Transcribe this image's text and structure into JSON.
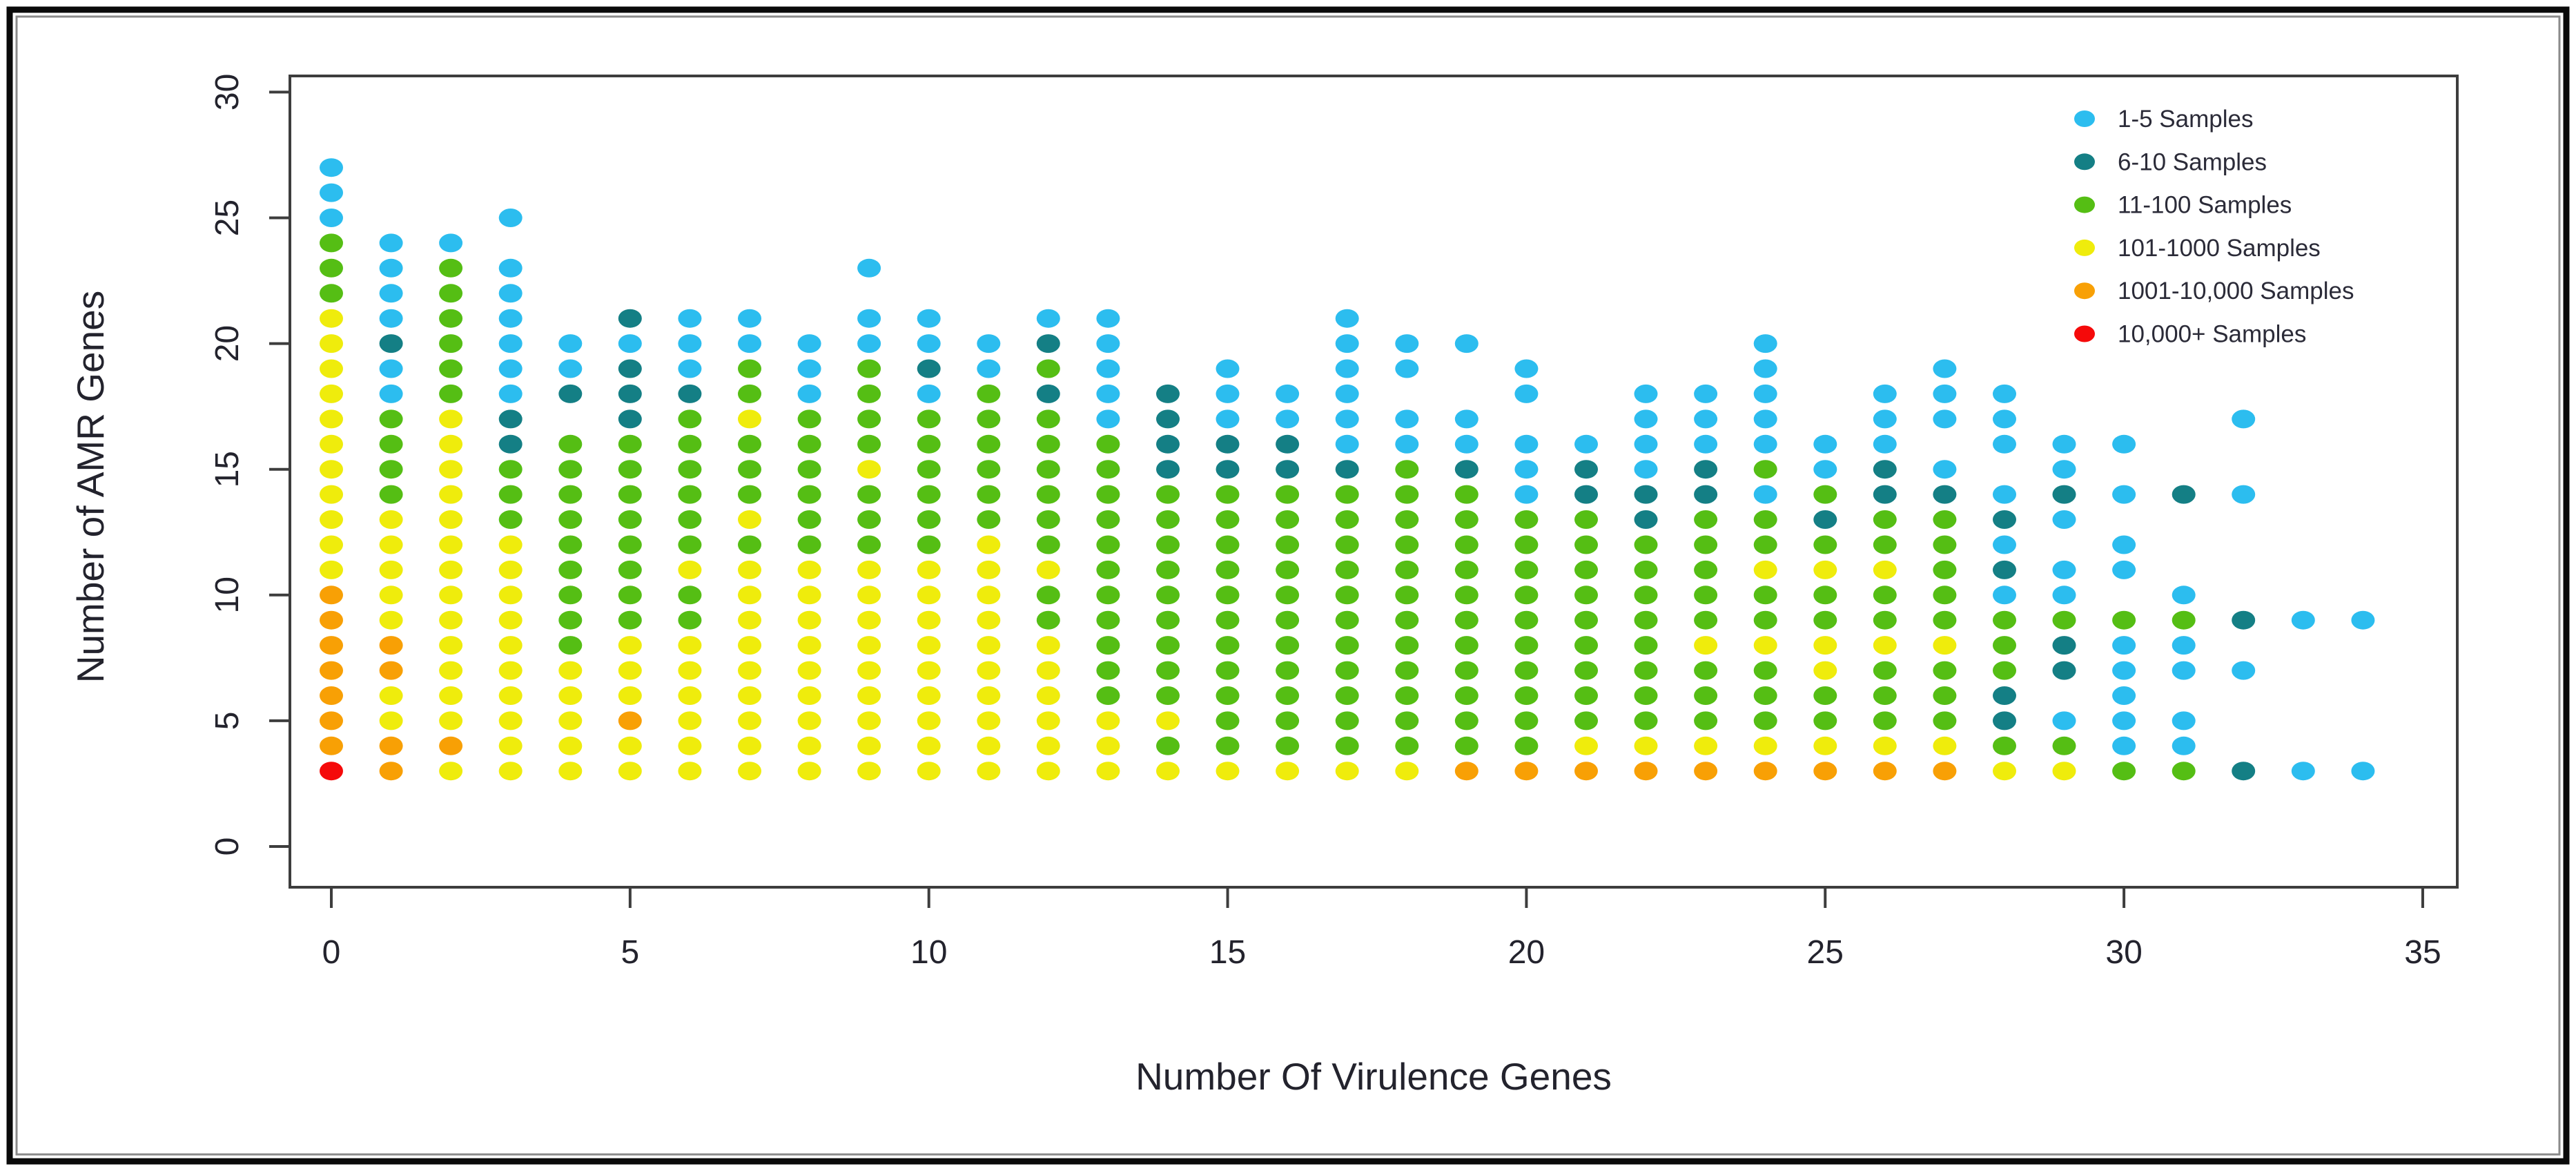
{
  "frame": {
    "bg": "#ffffff",
    "outer_border_color": "#0a0a0a",
    "inner_shadow_color": "#8a8a8a",
    "box_color": "#3d3d3d",
    "tick_color": "#3d3d3d",
    "text_color": "#23232d"
  },
  "chart_data": {
    "type": "scatter",
    "title": "",
    "xlabel": "Number Of Virulence Genes",
    "ylabel": "Number of AMR Genes",
    "xlim": [
      0,
      35
    ],
    "ylim": [
      0,
      30
    ],
    "xticks": [
      0,
      5,
      10,
      15,
      20,
      25,
      30,
      35
    ],
    "yticks": [
      0,
      5,
      10,
      15,
      20,
      25,
      30
    ],
    "grid": false,
    "legend_position": "top-right",
    "legend": [
      {
        "key": "B",
        "label": "1-5 Samples",
        "color": "#2cbdef"
      },
      {
        "key": "T",
        "label": "6-10 Samples",
        "color": "#147f85"
      },
      {
        "key": "G",
        "label": "11-100 Samples",
        "color": "#55be14"
      },
      {
        "key": "Y",
        "label": "101-1000 Samples",
        "color": "#efec0c"
      },
      {
        "key": "O",
        "label": "1001-10,000 Samples",
        "color": "#f8a005"
      },
      {
        "key": "R",
        "label": "10,000+ Samples",
        "color": "#f50a0a"
      }
    ],
    "encoding_note": "columns[].runs = [colorKey, yStart, yEnd]; one dot per integer y in each run",
    "columns": [
      {
        "x": 0,
        "runs": [
          [
            "R",
            3,
            3
          ],
          [
            "O",
            4,
            10
          ],
          [
            "Y",
            11,
            21
          ],
          [
            "G",
            22,
            24
          ],
          [
            "B",
            25,
            27
          ]
        ]
      },
      {
        "x": 1,
        "runs": [
          [
            "O",
            3,
            4
          ],
          [
            "Y",
            5,
            6
          ],
          [
            "O",
            7,
            8
          ],
          [
            "Y",
            9,
            13
          ],
          [
            "G",
            14,
            17
          ],
          [
            "B",
            18,
            19
          ],
          [
            "T",
            20,
            20
          ],
          [
            "B",
            21,
            24
          ]
        ]
      },
      {
        "x": 2,
        "runs": [
          [
            "Y",
            3,
            3
          ],
          [
            "O",
            4,
            4
          ],
          [
            "Y",
            5,
            17
          ],
          [
            "G",
            18,
            23
          ],
          [
            "B",
            24,
            24
          ]
        ]
      },
      {
        "x": 3,
        "runs": [
          [
            "Y",
            3,
            12
          ],
          [
            "G",
            13,
            15
          ],
          [
            "T",
            16,
            17
          ],
          [
            "B",
            18,
            23
          ],
          [
            "B",
            25,
            25
          ]
        ]
      },
      {
        "x": 4,
        "runs": [
          [
            "Y",
            3,
            7
          ],
          [
            "G",
            8,
            16
          ],
          [
            "T",
            18,
            18
          ],
          [
            "B",
            19,
            20
          ]
        ]
      },
      {
        "x": 5,
        "runs": [
          [
            "Y",
            3,
            4
          ],
          [
            "O",
            5,
            5
          ],
          [
            "Y",
            6,
            8
          ],
          [
            "G",
            9,
            16
          ],
          [
            "T",
            17,
            19
          ],
          [
            "B",
            20,
            20
          ],
          [
            "T",
            21,
            21
          ]
        ]
      },
      {
        "x": 6,
        "runs": [
          [
            "Y",
            3,
            8
          ],
          [
            "G",
            9,
            10
          ],
          [
            "Y",
            11,
            11
          ],
          [
            "G",
            12,
            17
          ],
          [
            "T",
            18,
            18
          ],
          [
            "B",
            19,
            21
          ]
        ]
      },
      {
        "x": 7,
        "runs": [
          [
            "Y",
            3,
            11
          ],
          [
            "G",
            12,
            12
          ],
          [
            "Y",
            13,
            13
          ],
          [
            "G",
            14,
            16
          ],
          [
            "Y",
            17,
            17
          ],
          [
            "G",
            18,
            19
          ],
          [
            "B",
            20,
            21
          ]
        ]
      },
      {
        "x": 8,
        "runs": [
          [
            "Y",
            3,
            11
          ],
          [
            "G",
            12,
            17
          ],
          [
            "B",
            18,
            20
          ]
        ]
      },
      {
        "x": 9,
        "runs": [
          [
            "Y",
            3,
            11
          ],
          [
            "G",
            12,
            14
          ],
          [
            "Y",
            15,
            15
          ],
          [
            "G",
            16,
            19
          ],
          [
            "B",
            20,
            21
          ],
          [
            "B",
            23,
            23
          ]
        ]
      },
      {
        "x": 10,
        "runs": [
          [
            "Y",
            3,
            11
          ],
          [
            "G",
            12,
            17
          ],
          [
            "B",
            18,
            18
          ],
          [
            "T",
            19,
            19
          ],
          [
            "B",
            20,
            21
          ]
        ]
      },
      {
        "x": 11,
        "runs": [
          [
            "Y",
            3,
            12
          ],
          [
            "G",
            13,
            18
          ],
          [
            "B",
            19,
            20
          ]
        ]
      },
      {
        "x": 12,
        "runs": [
          [
            "Y",
            3,
            8
          ],
          [
            "G",
            9,
            10
          ],
          [
            "Y",
            11,
            11
          ],
          [
            "G",
            12,
            17
          ],
          [
            "T",
            18,
            18
          ],
          [
            "G",
            19,
            19
          ],
          [
            "T",
            20,
            20
          ],
          [
            "B",
            21,
            21
          ]
        ]
      },
      {
        "x": 13,
        "runs": [
          [
            "Y",
            3,
            5
          ],
          [
            "G",
            6,
            16
          ],
          [
            "B",
            17,
            21
          ]
        ]
      },
      {
        "x": 14,
        "runs": [
          [
            "Y",
            3,
            3
          ],
          [
            "G",
            4,
            4
          ],
          [
            "Y",
            5,
            5
          ],
          [
            "G",
            6,
            14
          ],
          [
            "T",
            15,
            18
          ]
        ]
      },
      {
        "x": 15,
        "runs": [
          [
            "Y",
            3,
            3
          ],
          [
            "G",
            4,
            14
          ],
          [
            "T",
            15,
            16
          ],
          [
            "B",
            17,
            19
          ]
        ]
      },
      {
        "x": 16,
        "runs": [
          [
            "Y",
            3,
            3
          ],
          [
            "G",
            4,
            14
          ],
          [
            "T",
            15,
            16
          ],
          [
            "B",
            17,
            18
          ]
        ]
      },
      {
        "x": 17,
        "runs": [
          [
            "Y",
            3,
            3
          ],
          [
            "G",
            4,
            14
          ],
          [
            "T",
            15,
            15
          ],
          [
            "B",
            16,
            21
          ]
        ]
      },
      {
        "x": 18,
        "runs": [
          [
            "Y",
            3,
            3
          ],
          [
            "G",
            4,
            15
          ],
          [
            "B",
            16,
            17
          ],
          [
            "B",
            19,
            20
          ]
        ]
      },
      {
        "x": 19,
        "runs": [
          [
            "O",
            3,
            3
          ],
          [
            "G",
            4,
            14
          ],
          [
            "T",
            15,
            15
          ],
          [
            "B",
            16,
            17
          ],
          [
            "B",
            20,
            20
          ]
        ]
      },
      {
        "x": 20,
        "runs": [
          [
            "O",
            3,
            3
          ],
          [
            "G",
            4,
            13
          ],
          [
            "B",
            14,
            16
          ],
          [
            "B",
            18,
            19
          ]
        ]
      },
      {
        "x": 21,
        "runs": [
          [
            "O",
            3,
            3
          ],
          [
            "Y",
            4,
            4
          ],
          [
            "G",
            5,
            13
          ],
          [
            "T",
            14,
            15
          ],
          [
            "B",
            16,
            16
          ]
        ]
      },
      {
        "x": 22,
        "runs": [
          [
            "O",
            3,
            3
          ],
          [
            "Y",
            4,
            4
          ],
          [
            "G",
            5,
            12
          ],
          [
            "T",
            13,
            14
          ],
          [
            "B",
            15,
            18
          ]
        ]
      },
      {
        "x": 23,
        "runs": [
          [
            "O",
            3,
            3
          ],
          [
            "Y",
            4,
            4
          ],
          [
            "G",
            5,
            7
          ],
          [
            "Y",
            8,
            8
          ],
          [
            "G",
            9,
            13
          ],
          [
            "T",
            14,
            15
          ],
          [
            "B",
            16,
            18
          ]
        ]
      },
      {
        "x": 24,
        "runs": [
          [
            "O",
            3,
            3
          ],
          [
            "Y",
            4,
            4
          ],
          [
            "G",
            5,
            7
          ],
          [
            "Y",
            8,
            8
          ],
          [
            "G",
            9,
            10
          ],
          [
            "Y",
            11,
            11
          ],
          [
            "G",
            12,
            13
          ],
          [
            "B",
            14,
            14
          ],
          [
            "G",
            15,
            15
          ],
          [
            "B",
            16,
            20
          ]
        ]
      },
      {
        "x": 25,
        "runs": [
          [
            "O",
            3,
            3
          ],
          [
            "Y",
            4,
            4
          ],
          [
            "G",
            5,
            6
          ],
          [
            "Y",
            7,
            8
          ],
          [
            "G",
            9,
            10
          ],
          [
            "Y",
            11,
            11
          ],
          [
            "G",
            12,
            12
          ],
          [
            "T",
            13,
            13
          ],
          [
            "G",
            14,
            14
          ],
          [
            "B",
            15,
            16
          ]
        ]
      },
      {
        "x": 26,
        "runs": [
          [
            "O",
            3,
            3
          ],
          [
            "Y",
            4,
            4
          ],
          [
            "G",
            5,
            7
          ],
          [
            "Y",
            8,
            8
          ],
          [
            "G",
            9,
            10
          ],
          [
            "Y",
            11,
            11
          ],
          [
            "G",
            12,
            13
          ],
          [
            "T",
            14,
            15
          ],
          [
            "B",
            16,
            18
          ]
        ]
      },
      {
        "x": 27,
        "runs": [
          [
            "O",
            3,
            3
          ],
          [
            "Y",
            4,
            4
          ],
          [
            "G",
            5,
            7
          ],
          [
            "Y",
            8,
            8
          ],
          [
            "G",
            9,
            13
          ],
          [
            "T",
            14,
            14
          ],
          [
            "B",
            15,
            15
          ],
          [
            "B",
            17,
            19
          ]
        ]
      },
      {
        "x": 28,
        "runs": [
          [
            "Y",
            3,
            3
          ],
          [
            "G",
            4,
            4
          ],
          [
            "T",
            5,
            6
          ],
          [
            "G",
            7,
            9
          ],
          [
            "B",
            10,
            10
          ],
          [
            "T",
            11,
            11
          ],
          [
            "B",
            12,
            12
          ],
          [
            "T",
            13,
            13
          ],
          [
            "B",
            14,
            14
          ],
          [
            "B",
            16,
            18
          ]
        ]
      },
      {
        "x": 29,
        "runs": [
          [
            "Y",
            3,
            3
          ],
          [
            "G",
            4,
            4
          ],
          [
            "B",
            5,
            5
          ],
          [
            "T",
            7,
            8
          ],
          [
            "G",
            9,
            9
          ],
          [
            "B",
            10,
            11
          ],
          [
            "B",
            13,
            13
          ],
          [
            "T",
            14,
            14
          ],
          [
            "B",
            15,
            16
          ]
        ]
      },
      {
        "x": 30,
        "runs": [
          [
            "G",
            3,
            3
          ],
          [
            "B",
            4,
            8
          ],
          [
            "G",
            9,
            9
          ],
          [
            "B",
            11,
            12
          ],
          [
            "B",
            14,
            14
          ],
          [
            "B",
            16,
            16
          ]
        ]
      },
      {
        "x": 31,
        "runs": [
          [
            "G",
            3,
            3
          ],
          [
            "B",
            4,
            5
          ],
          [
            "B",
            7,
            8
          ],
          [
            "G",
            9,
            9
          ],
          [
            "B",
            10,
            10
          ],
          [
            "T",
            14,
            14
          ]
        ]
      },
      {
        "x": 32,
        "runs": [
          [
            "T",
            3,
            3
          ],
          [
            "B",
            7,
            7
          ],
          [
            "T",
            9,
            9
          ],
          [
            "B",
            14,
            14
          ],
          [
            "B",
            17,
            17
          ]
        ]
      },
      {
        "x": 33,
        "runs": [
          [
            "B",
            3,
            3
          ],
          [
            "B",
            9,
            9
          ]
        ]
      },
      {
        "x": 34,
        "runs": [
          [
            "B",
            3,
            3
          ],
          [
            "B",
            9,
            9
          ]
        ]
      }
    ]
  }
}
